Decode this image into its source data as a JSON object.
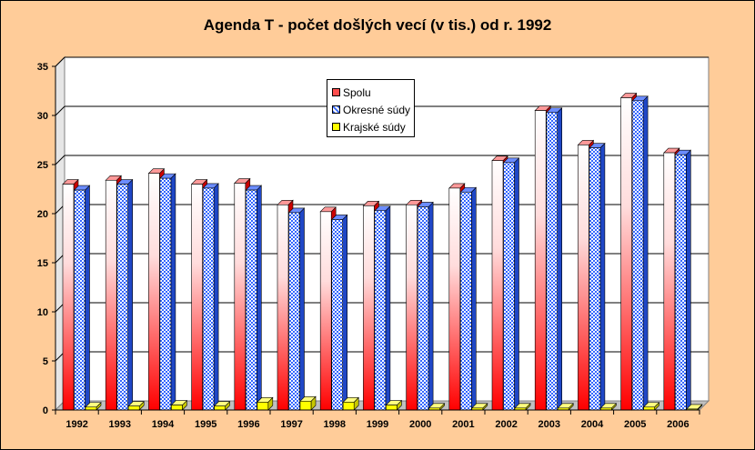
{
  "chart_data": {
    "type": "bar",
    "title": "Agenda T - počet došlých vecí (v tis.)",
    "title_suffix": "od r. 1992",
    "categories": [
      "1992",
      "1993",
      "1994",
      "1995",
      "1996",
      "1997",
      "1998",
      "1999",
      "2000",
      "2001",
      "2002",
      "2003",
      "2004",
      "2005",
      "2006"
    ],
    "series": [
      {
        "name": "Spolu",
        "values": [
          23.0,
          23.4,
          24.1,
          23.0,
          23.1,
          20.9,
          20.2,
          20.8,
          20.9,
          22.6,
          25.4,
          30.5,
          27.0,
          31.8,
          26.2
        ],
        "color": "#ff0000"
      },
      {
        "name": "Okresné súdy",
        "values": [
          22.4,
          23.0,
          23.6,
          22.6,
          22.4,
          20.1,
          19.4,
          20.3,
          20.7,
          22.2,
          25.2,
          30.3,
          26.7,
          31.5,
          26.0
        ],
        "color": "#3366ff"
      },
      {
        "name": "Krajské súdy",
        "values": [
          0.3,
          0.4,
          0.5,
          0.4,
          0.8,
          0.9,
          0.8,
          0.5,
          0.2,
          0.2,
          0.2,
          0.2,
          0.2,
          0.3,
          0.1
        ],
        "color": "#ffff00"
      }
    ],
    "ylim": [
      0,
      35
    ],
    "yticks": [
      0,
      5,
      10,
      15,
      20,
      25,
      30,
      35
    ],
    "grid": true,
    "legend_position": "top-center"
  }
}
